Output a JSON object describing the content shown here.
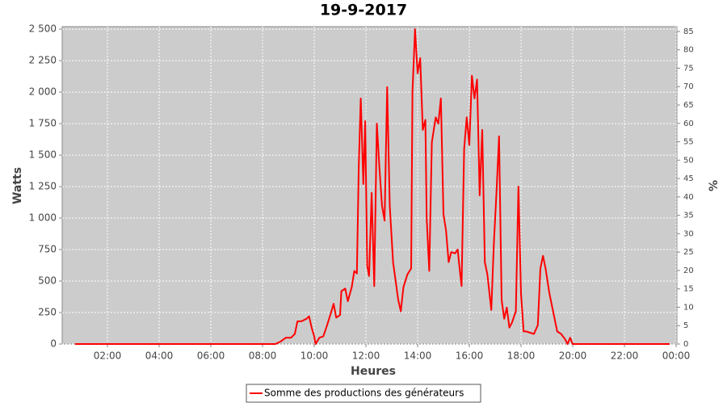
{
  "chart_data": {
    "type": "line",
    "title": "19-9-2017",
    "x_label": "Heures",
    "y_label": "Watts",
    "y2_label": "%",
    "x": [
      0.75,
      3,
      6,
      8,
      8.5,
      8.7,
      8.9,
      9.1,
      9.25,
      9.35,
      9.5,
      9.7,
      9.8,
      9.9,
      10.0,
      10.05,
      10.2,
      10.35,
      10.5,
      10.65,
      10.75,
      10.85,
      11.0,
      11.05,
      11.2,
      11.3,
      11.45,
      11.55,
      11.65,
      11.72,
      11.8,
      11.9,
      11.97,
      12.05,
      12.12,
      12.22,
      12.32,
      12.42,
      12.52,
      12.62,
      12.72,
      12.82,
      12.92,
      13.05,
      13.15,
      13.25,
      13.35,
      13.45,
      13.6,
      13.75,
      13.8,
      13.9,
      14.0,
      14.1,
      14.2,
      14.3,
      14.35,
      14.45,
      14.55,
      14.7,
      14.8,
      14.9,
      15.0,
      15.1,
      15.2,
      15.3,
      15.45,
      15.55,
      15.65,
      15.7,
      15.8,
      15.9,
      16.0,
      16.1,
      16.2,
      16.3,
      16.4,
      16.5,
      16.6,
      16.7,
      16.85,
      16.95,
      17.05,
      17.15,
      17.25,
      17.35,
      17.45,
      17.55,
      17.65,
      17.8,
      17.9,
      18.0,
      18.1,
      18.2,
      18.35,
      18.5,
      18.65,
      18.75,
      18.85,
      18.95,
      19.1,
      19.2,
      19.3,
      19.4,
      19.55,
      19.7,
      19.8,
      19.9,
      20.0,
      22,
      23.75
    ],
    "xlim": [
      0.25,
      24.03
    ],
    "xticks": [
      {
        "value": 2,
        "label": "02:00"
      },
      {
        "value": 4,
        "label": "04:00"
      },
      {
        "value": 6,
        "label": "06:00"
      },
      {
        "value": 8,
        "label": "08:00"
      },
      {
        "value": 10,
        "label": "10:00"
      },
      {
        "value": 12,
        "label": "12:00"
      },
      {
        "value": 14,
        "label": "14:00"
      },
      {
        "value": 16,
        "label": "16:00"
      },
      {
        "value": 18,
        "label": "18:00"
      },
      {
        "value": 20,
        "label": "20:00"
      },
      {
        "value": 22,
        "label": "22:00"
      },
      {
        "value": 24,
        "label": "00:00"
      }
    ],
    "ylim": [
      0,
      2520
    ],
    "yticks": [
      0,
      250,
      500,
      750,
      {
        "value": 1000,
        "label": "1 000"
      },
      {
        "value": 1250,
        "label": "1 250"
      },
      {
        "value": 1500,
        "label": "1 500"
      },
      {
        "value": 1750,
        "label": "1 750"
      },
      {
        "value": 2000,
        "label": "2 000"
      },
      {
        "value": 2250,
        "label": "2 250"
      },
      {
        "value": 2500,
        "label": "2 500"
      }
    ],
    "y2lim": [
      0,
      86.3
    ],
    "y2ticks": [
      0,
      5,
      10,
      15,
      20,
      25,
      30,
      35,
      40,
      45,
      50,
      55,
      60,
      65,
      70,
      75,
      80,
      85
    ],
    "grid": true,
    "series": [
      {
        "name": "Somme des productions des  générateurs",
        "color": "#ff0000",
        "values": [
          0,
          0,
          0,
          0,
          0,
          20,
          50,
          50,
          80,
          180,
          180,
          200,
          220,
          130,
          60,
          0,
          50,
          60,
          150,
          250,
          320,
          210,
          230,
          420,
          440,
          340,
          450,
          580,
          560,
          1400,
          1950,
          1270,
          1770,
          620,
          540,
          1200,
          460,
          1750,
          1400,
          1100,
          980,
          2040,
          1100,
          650,
          500,
          350,
          260,
          450,
          550,
          600,
          2000,
          2500,
          2150,
          2270,
          1700,
          1780,
          1000,
          580,
          1600,
          1800,
          1750,
          1950,
          1030,
          900,
          650,
          730,
          720,
          750,
          550,
          460,
          1550,
          1800,
          1580,
          2130,
          1950,
          2100,
          1180,
          1700,
          650,
          550,
          270,
          800,
          1200,
          1650,
          350,
          200,
          290,
          130,
          170,
          260,
          1250,
          400,
          100,
          100,
          90,
          80,
          150,
          600,
          700,
          600,
          400,
          300,
          200,
          100,
          80,
          40,
          0,
          50,
          0,
          0,
          0
        ]
      }
    ]
  }
}
